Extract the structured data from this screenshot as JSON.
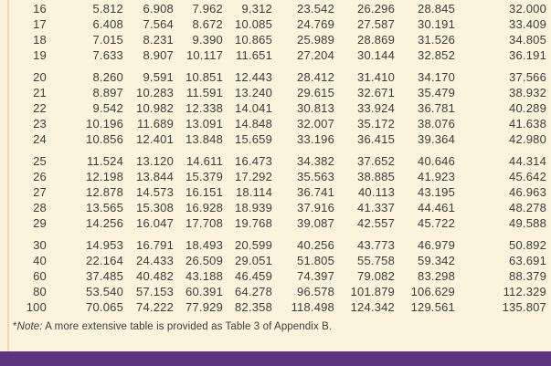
{
  "colors": {
    "background": "#FBF3DB",
    "rule": "#E7DAB4",
    "footer_bar": "#5C3480",
    "text": "#3C3C3C"
  },
  "table": {
    "groups": [
      {
        "rows": [
          [
            "16",
            "5.812",
            "6.908",
            "7.962",
            "9.312",
            "23.542",
            "26.296",
            "28.845",
            "32.000"
          ],
          [
            "17",
            "6.408",
            "7.564",
            "8.672",
            "10.085",
            "24.769",
            "27.587",
            "30.191",
            "33.409"
          ],
          [
            "18",
            "7.015",
            "8.231",
            "9.390",
            "10.865",
            "25.989",
            "28.869",
            "31.526",
            "34.805"
          ],
          [
            "19",
            "7.633",
            "8.907",
            "10.117",
            "11.651",
            "27.204",
            "30.144",
            "32.852",
            "36.191"
          ]
        ]
      },
      {
        "rows": [
          [
            "20",
            "8.260",
            "9.591",
            "10.851",
            "12.443",
            "28.412",
            "31.410",
            "34.170",
            "37.566"
          ],
          [
            "21",
            "8.897",
            "10.283",
            "11.591",
            "13.240",
            "29.615",
            "32.671",
            "35.479",
            "38.932"
          ],
          [
            "22",
            "9.542",
            "10.982",
            "12.338",
            "14.041",
            "30.813",
            "33.924",
            "36.781",
            "40.289"
          ],
          [
            "23",
            "10.196",
            "11.689",
            "13.091",
            "14.848",
            "32.007",
            "35.172",
            "38.076",
            "41.638"
          ],
          [
            "24",
            "10.856",
            "12.401",
            "13.848",
            "15.659",
            "33.196",
            "36.415",
            "39.364",
            "42.980"
          ]
        ]
      },
      {
        "rows": [
          [
            "25",
            "11.524",
            "13.120",
            "14.611",
            "16.473",
            "34.382",
            "37.652",
            "40.646",
            "44.314"
          ],
          [
            "26",
            "12.198",
            "13.844",
            "15.379",
            "17.292",
            "35.563",
            "38.885",
            "41.923",
            "45.642"
          ],
          [
            "27",
            "12.878",
            "14.573",
            "16.151",
            "18.114",
            "36.741",
            "40.113",
            "43.195",
            "46.963"
          ],
          [
            "28",
            "13.565",
            "15.308",
            "16.928",
            "18.939",
            "37.916",
            "41.337",
            "44.461",
            "48.278"
          ],
          [
            "29",
            "14.256",
            "16.047",
            "17.708",
            "19.768",
            "39.087",
            "42.557",
            "45.722",
            "49.588"
          ]
        ]
      },
      {
        "rows": [
          [
            "30",
            "14.953",
            "16.791",
            "18.493",
            "20.599",
            "40.256",
            "43.773",
            "46.979",
            "50.892"
          ],
          [
            "40",
            "22.164",
            "24.433",
            "26.509",
            "29.051",
            "51.805",
            "55.758",
            "59.342",
            "63.691"
          ],
          [
            "60",
            "37.485",
            "40.482",
            "43.188",
            "46.459",
            "74.397",
            "79.082",
            "83.298",
            "88.379"
          ],
          [
            "80",
            "53.540",
            "57.153",
            "60.391",
            "64.278",
            "96.578",
            "101.879",
            "106.629",
            "112.329"
          ],
          [
            "100",
            "70.065",
            "74.222",
            "77.929",
            "82.358",
            "118.498",
            "124.342",
            "129.561",
            "135.807"
          ]
        ]
      }
    ]
  },
  "note": {
    "asterisk": "*",
    "label": "Note:",
    "text": " A more extensive table is provided as Table 3 of Appendix B."
  }
}
